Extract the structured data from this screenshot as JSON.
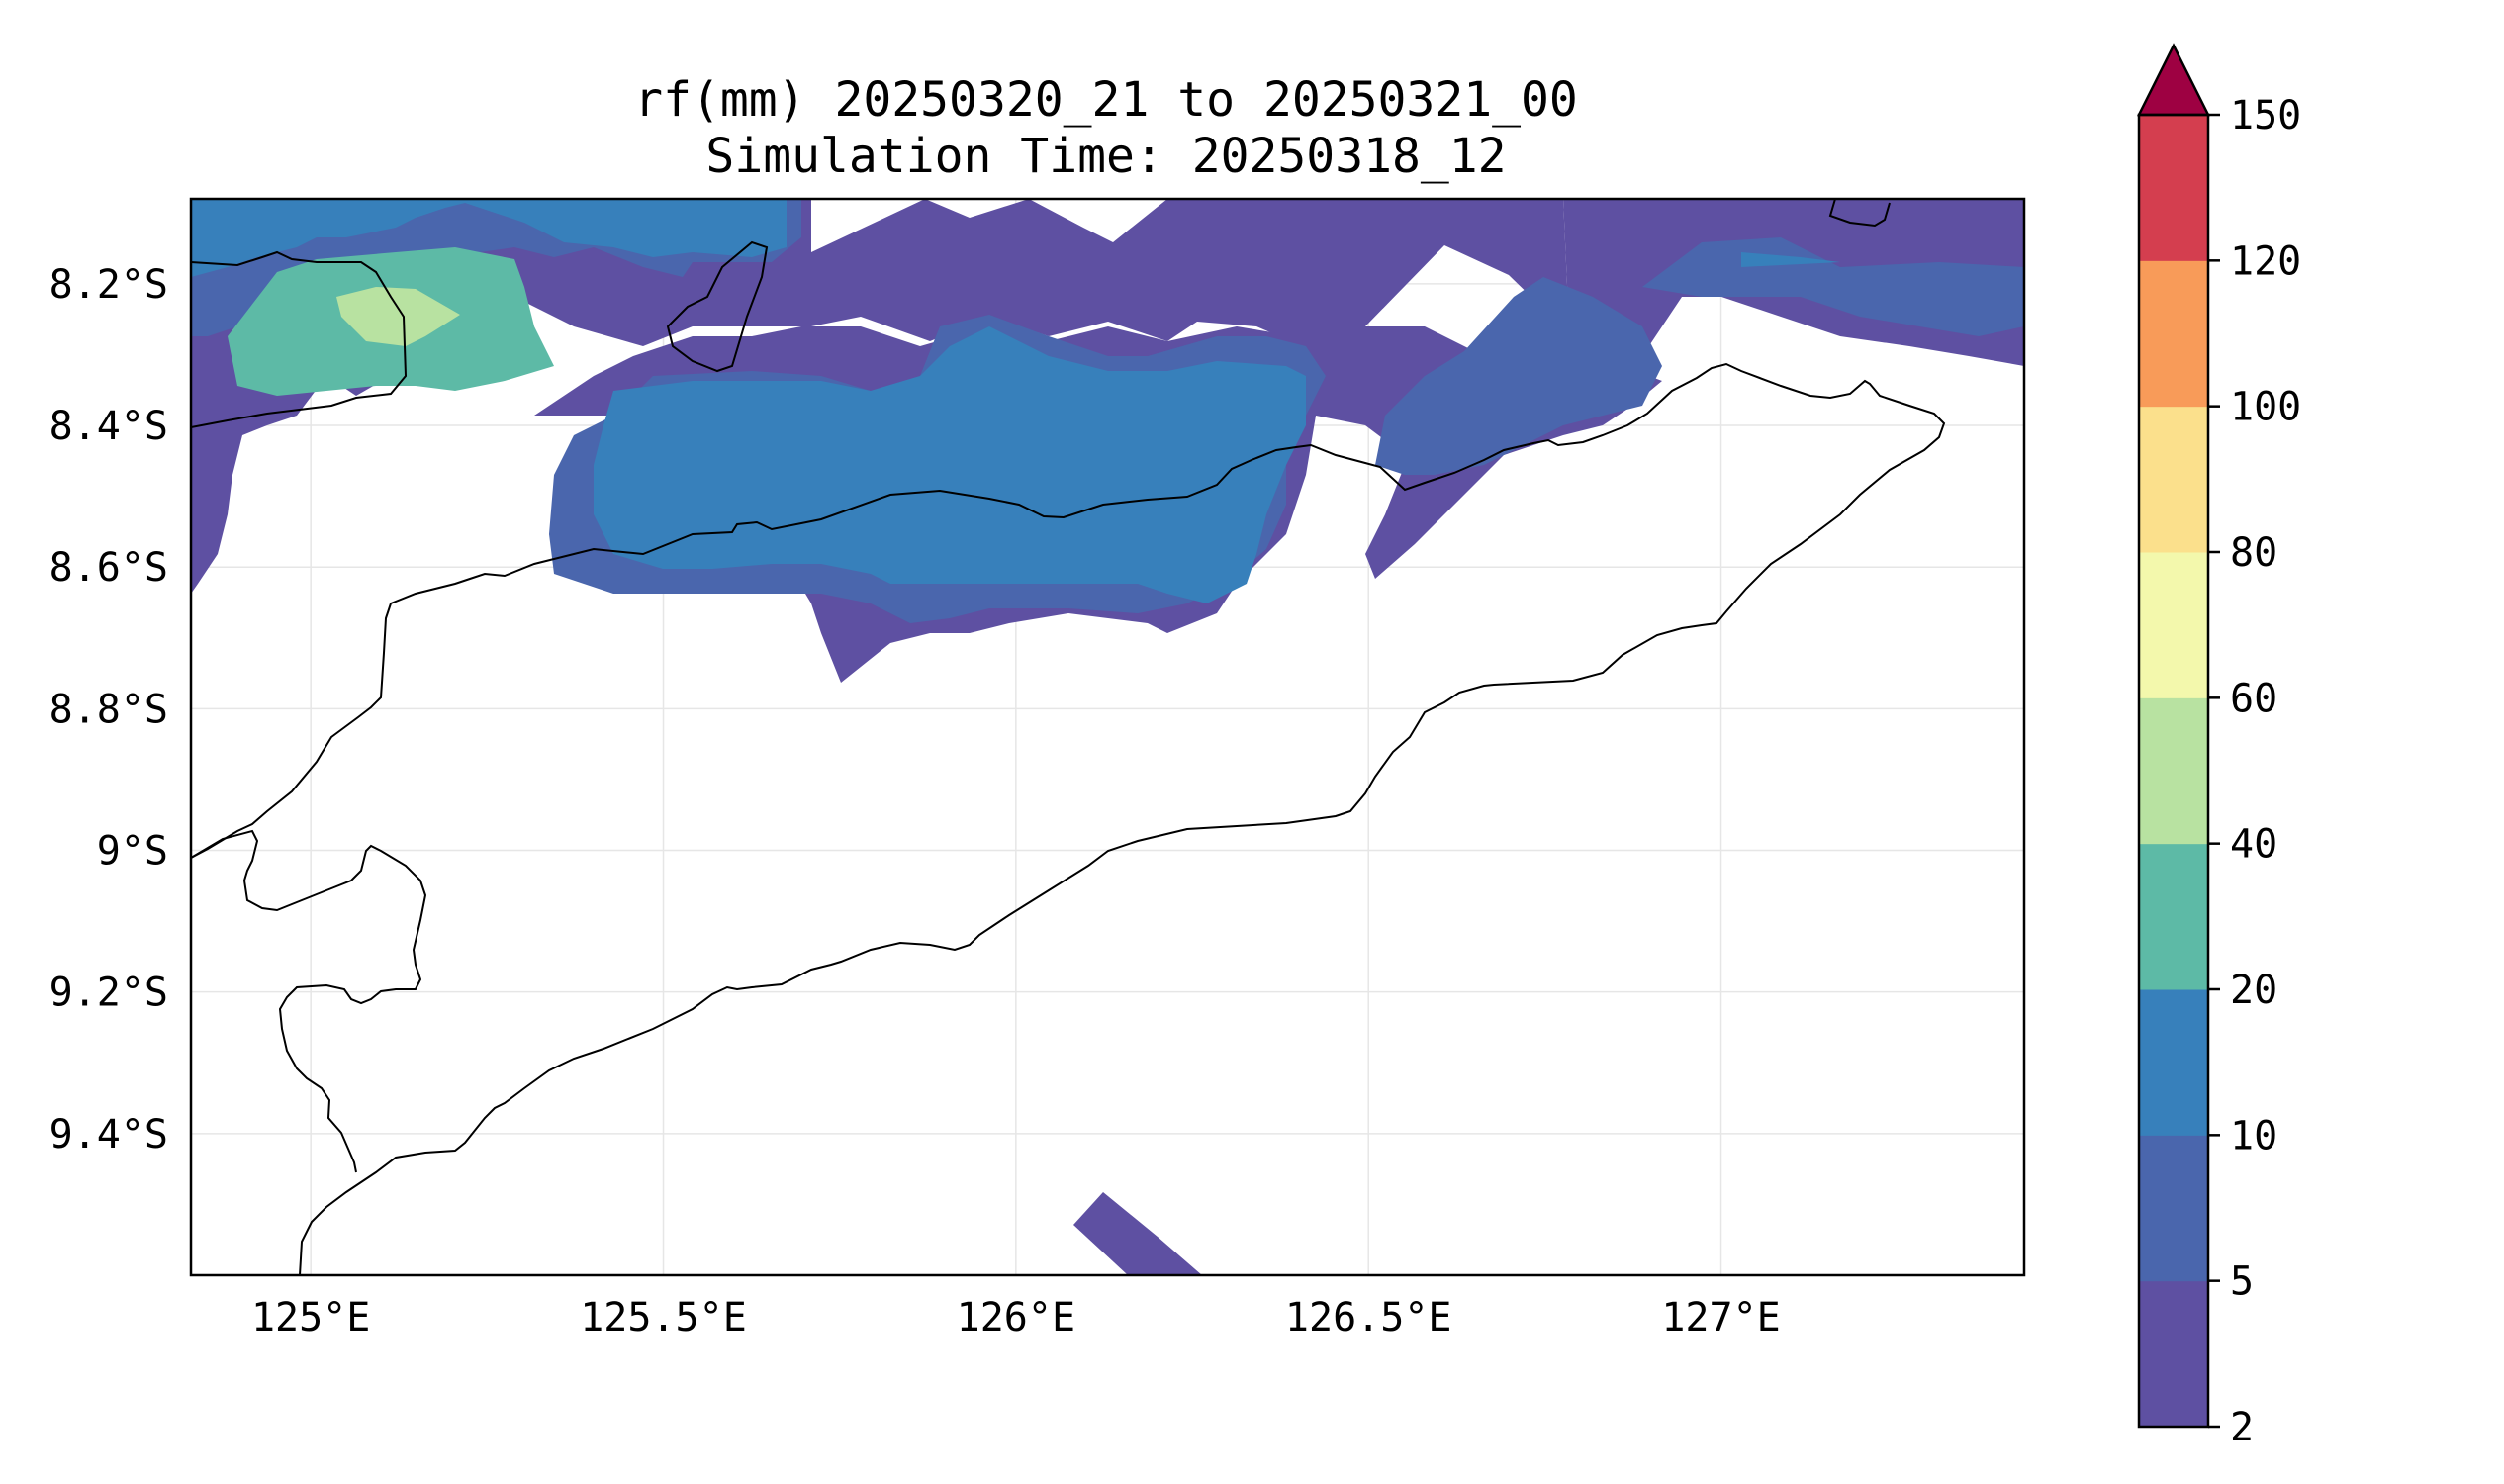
{
  "title_line1": "rf(mm) 20250320_21 to 20250321_00",
  "title_line2": "Simulation Time: 20250318_12",
  "map_extent": {
    "lon_min": 124.83,
    "lon_max": 127.43,
    "lat_top": -8.08,
    "lat_bottom": -9.6
  },
  "x_ticks": [
    {
      "lon": 125.0,
      "label": "125°E"
    },
    {
      "lon": 125.5,
      "label": "125.5°E"
    },
    {
      "lon": 126.0,
      "label": "126°E"
    },
    {
      "lon": 126.5,
      "label": "126.5°E"
    },
    {
      "lon": 127.0,
      "label": "127°E"
    }
  ],
  "y_ticks": [
    {
      "lat": -8.2,
      "label": "8.2°S"
    },
    {
      "lat": -8.4,
      "label": "8.4°S"
    },
    {
      "lat": -8.6,
      "label": "8.6°S"
    },
    {
      "lat": -8.8,
      "label": "8.8°S"
    },
    {
      "lat": -9.0,
      "label": "9°S"
    },
    {
      "lat": -9.2,
      "label": "9.2°S"
    },
    {
      "lat": -9.4,
      "label": "9.4°S"
    }
  ],
  "colorbar": {
    "levels": [
      "2",
      "5",
      "10",
      "20",
      "40",
      "60",
      "80",
      "100",
      "120",
      "150"
    ],
    "colors": [
      "#5e50a2",
      "#4a66ad",
      "#3780bb",
      "#5dbaa6",
      "#b8e2a1",
      "#f3f8ac",
      "#fbe08c",
      "#f89b59",
      "#d43e4f"
    ],
    "extend_color": "#9e0142",
    "extend": "max"
  },
  "colors": {
    "coastline": "#000000",
    "grid": "#e6e6e6",
    "frame": "#000000"
  }
}
